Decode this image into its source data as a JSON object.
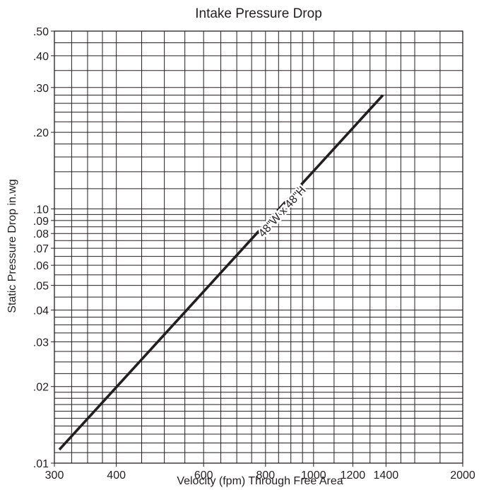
{
  "chart_data": {
    "type": "line",
    "title": "Intake Pressure Drop",
    "xlabel": "Velocity (fpm) Through Free Area",
    "ylabel": "Static Pressure Drop in.wg",
    "x_scale": "log",
    "y_scale": "log",
    "xlim": [
      300,
      2000
    ],
    "ylim": [
      0.01,
      0.5
    ],
    "grid": true,
    "x_ticks": [
      {
        "value": 300,
        "label": "300"
      },
      {
        "value": 400,
        "label": "400"
      },
      {
        "value": 600,
        "label": "600"
      },
      {
        "value": 800,
        "label": "800"
      },
      {
        "value": 1000,
        "label": "1000"
      },
      {
        "value": 1200,
        "label": "1200"
      },
      {
        "value": 1400,
        "label": "1400"
      },
      {
        "value": 2000,
        "label": "2000"
      }
    ],
    "y_ticks": [
      {
        "value": 0.01,
        "label": ".01"
      },
      {
        "value": 0.02,
        "label": ".02"
      },
      {
        "value": 0.03,
        "label": ".03"
      },
      {
        "value": 0.04,
        "label": ".04"
      },
      {
        "value": 0.05,
        "label": ".05"
      },
      {
        "value": 0.06,
        "label": ".06"
      },
      {
        "value": 0.07,
        "label": ".07"
      },
      {
        "value": 0.08,
        "label": ".08"
      },
      {
        "value": 0.09,
        "label": ".09"
      },
      {
        "value": 0.1,
        "label": ".10"
      },
      {
        "value": 0.2,
        "label": ".20"
      },
      {
        "value": 0.3,
        "label": ".30"
      },
      {
        "value": 0.4,
        "label": ".40"
      },
      {
        "value": 0.5,
        "label": ".50"
      }
    ],
    "x_gridlines": [
      300,
      325,
      350,
      375,
      400,
      450,
      500,
      550,
      600,
      650,
      700,
      750,
      800,
      850,
      900,
      950,
      1000,
      1100,
      1200,
      1300,
      1400,
      1500,
      1600,
      1800,
      2000
    ],
    "y_gridlines": [
      0.01,
      0.011,
      0.012,
      0.013,
      0.014,
      0.015,
      0.016,
      0.017,
      0.018,
      0.019,
      0.02,
      0.0225,
      0.025,
      0.0275,
      0.03,
      0.0325,
      0.035,
      0.0375,
      0.04,
      0.045,
      0.05,
      0.055,
      0.06,
      0.065,
      0.07,
      0.075,
      0.08,
      0.085,
      0.09,
      0.095,
      0.1,
      0.12,
      0.14,
      0.16,
      0.18,
      0.2,
      0.22,
      0.24,
      0.26,
      0.28,
      0.3,
      0.35,
      0.4,
      0.45,
      0.5
    ],
    "series": [
      {
        "name": "48\"W x 48\"H",
        "color": "#231f20",
        "x": [
          307,
          1380
        ],
        "y": [
          0.0113,
          0.28
        ]
      }
    ]
  }
}
